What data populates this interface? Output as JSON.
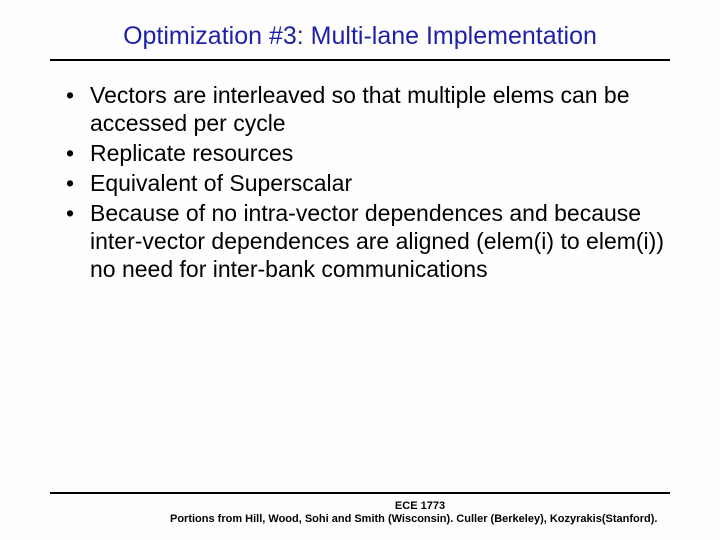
{
  "slide": {
    "title": "Optimization #3: Multi-lane Implementation",
    "title_color": "#1f1fa8",
    "title_fontsize": 25,
    "underline_color": "#000000",
    "underline_width": 2.5,
    "background_color": "#fefefe",
    "bullets": [
      "Vectors are interleaved so that multiple elems can be accessed per cycle",
      "Replicate resources",
      "Equivalent of Superscalar",
      "Because of no intra-vector dependences and because inter-vector dependences are aligned (elem(i) to elem(i)) no need for inter-bank communications"
    ],
    "bullet_fontsize": 23,
    "bullet_color": "#000000",
    "footer": {
      "course": "ECE 1773",
      "credits": "Portions from Hill, Wood, Sohi and Smith (Wisconsin). Culler (Berkeley), Kozyrakis(Stanford).",
      "fontsize": 11,
      "color": "#000000"
    }
  }
}
